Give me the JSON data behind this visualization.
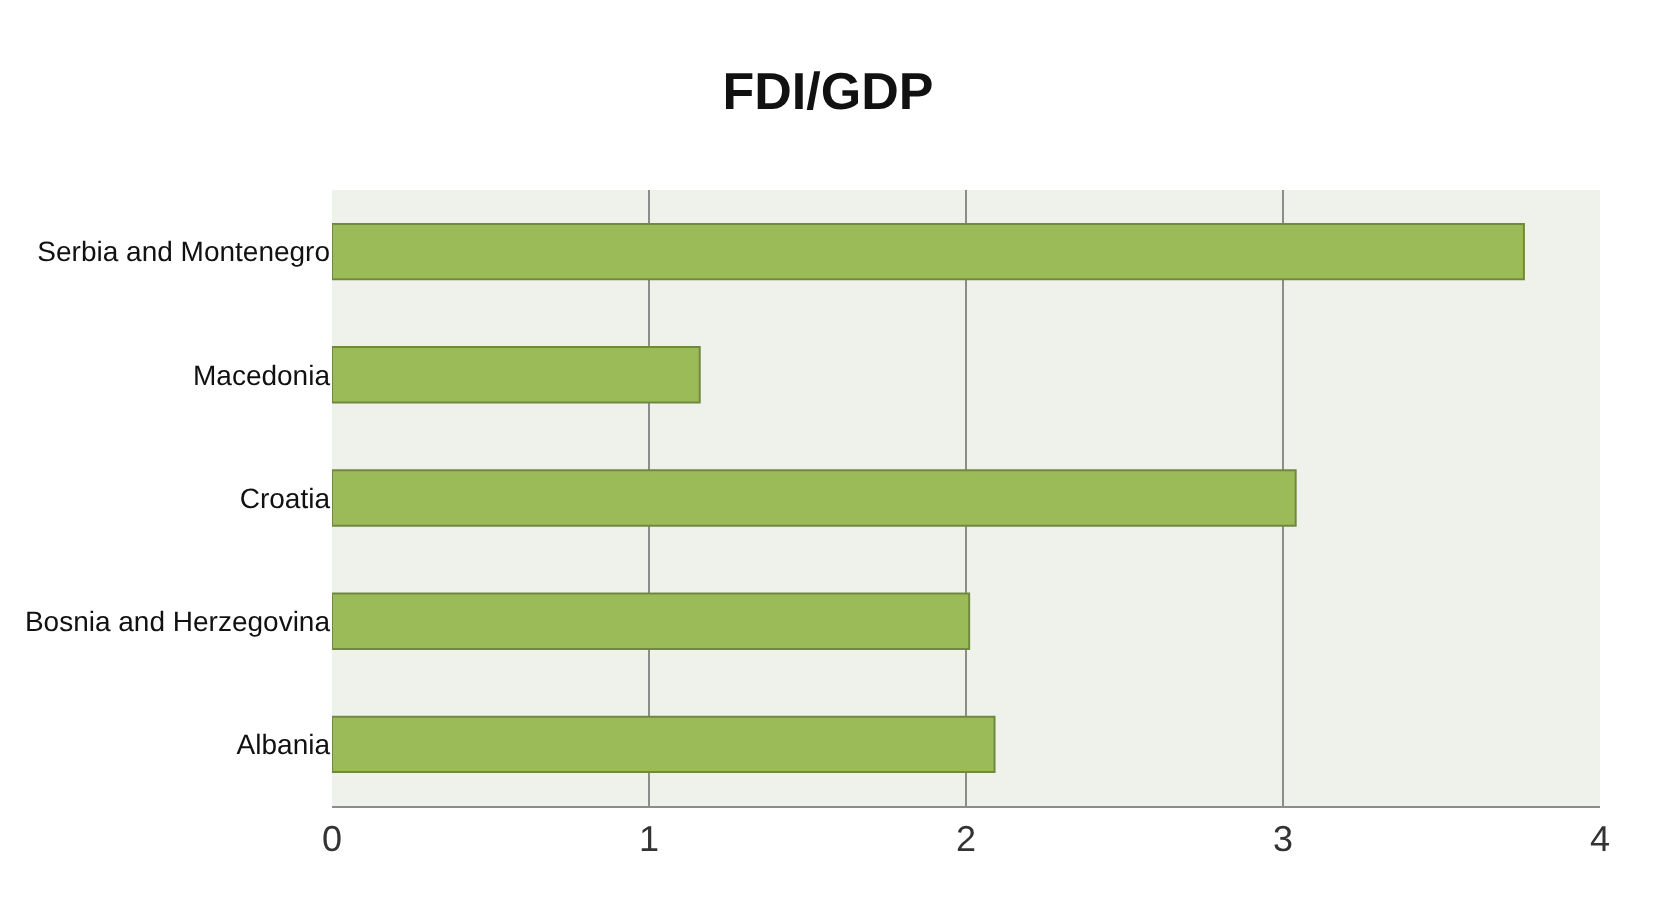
{
  "chart_data": {
    "type": "bar",
    "orientation": "horizontal",
    "title": "FDI/GDP",
    "categories": [
      "Serbia and Montenegro",
      "Macedonia",
      "Croatia",
      "Bosnia and Herzegovina",
      "Albania"
    ],
    "values": [
      3.76,
      1.16,
      3.04,
      2.01,
      2.09
    ],
    "color": "#9bbb59",
    "xlim": [
      0,
      4
    ],
    "xticks": [
      0,
      1,
      2,
      3,
      4
    ],
    "grid": "x"
  }
}
